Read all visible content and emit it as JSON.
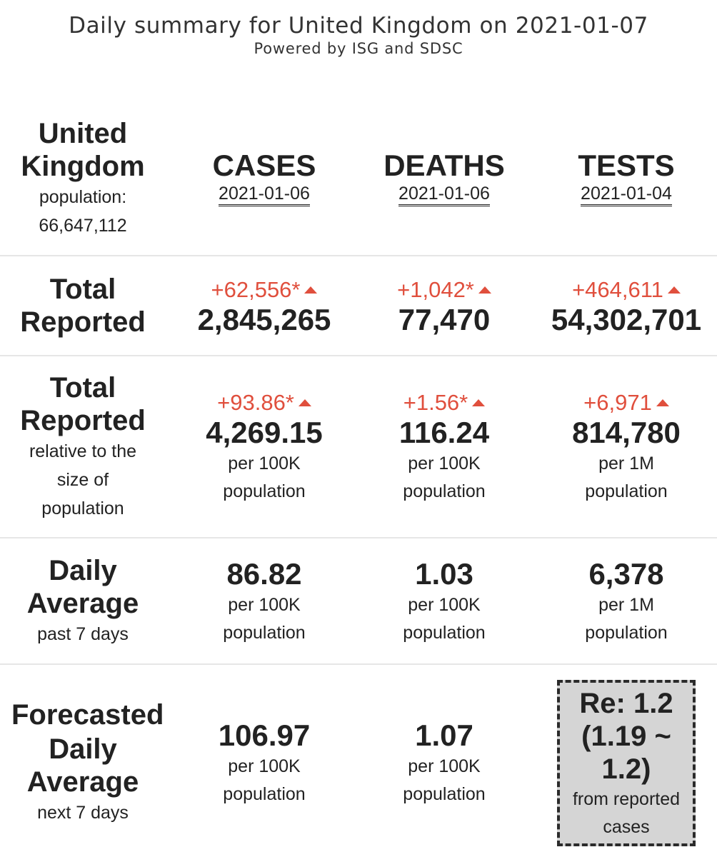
{
  "header": {
    "title": "Daily summary for United Kingdom on 2021-01-07",
    "subtitle": "Powered by ISG and SDSC"
  },
  "country": {
    "name_line1": "United",
    "name_line2": "Kingdom",
    "population_label": "population:",
    "population_value": "66,647,112"
  },
  "columns": [
    {
      "name": "CASES",
      "date": "2021-01-06"
    },
    {
      "name": "DEATHS",
      "date": "2021-01-06"
    },
    {
      "name": "TESTS",
      "date": "2021-01-04"
    }
  ],
  "total_reported": {
    "label_line1": "Total",
    "label_line2": "Reported",
    "cases": {
      "delta": "+62,556*",
      "value": "2,845,265"
    },
    "deaths": {
      "delta": "+1,042*",
      "value": "77,470"
    },
    "tests": {
      "delta": "+464,611",
      "value": "54,302,701"
    }
  },
  "relative": {
    "label_line1": "Total",
    "label_line2": "Reported",
    "note_line1": "relative to the",
    "note_line2": "size of",
    "note_line3": "population",
    "cases": {
      "delta": "+93.86*",
      "value": "4,269.15",
      "unit1": "per 100K",
      "unit2": "population"
    },
    "deaths": {
      "delta": "+1.56*",
      "value": "116.24",
      "unit1": "per 100K",
      "unit2": "population"
    },
    "tests": {
      "delta": "+6,971",
      "value": "814,780",
      "unit1": "per 1M",
      "unit2": "population"
    }
  },
  "daily_average": {
    "label_line1": "Daily",
    "label_line2": "Average",
    "note": "past 7 days",
    "cases": {
      "value": "86.82",
      "unit1": "per 100K",
      "unit2": "population"
    },
    "deaths": {
      "value": "1.03",
      "unit1": "per 100K",
      "unit2": "population"
    },
    "tests": {
      "value": "6,378",
      "unit1": "per 1M",
      "unit2": "population"
    }
  },
  "forecast": {
    "label_line1": "Forecasted",
    "label_line2": "Daily",
    "label_line3": "Average",
    "note": "next 7 days",
    "cases": {
      "value": "106.97",
      "unit1": "per 100K",
      "unit2": "population"
    },
    "deaths": {
      "value": "1.07",
      "unit1": "per 100K",
      "unit2": "population"
    },
    "re": {
      "line1": "Re: 1.2",
      "line2": "(1.19 ~",
      "line3": "1.2)",
      "note1": "from reported",
      "note2": "cases"
    }
  },
  "colors": {
    "increase": "#e04f3d",
    "text": "#222222",
    "re_box_bg": "#d5d5d5"
  }
}
